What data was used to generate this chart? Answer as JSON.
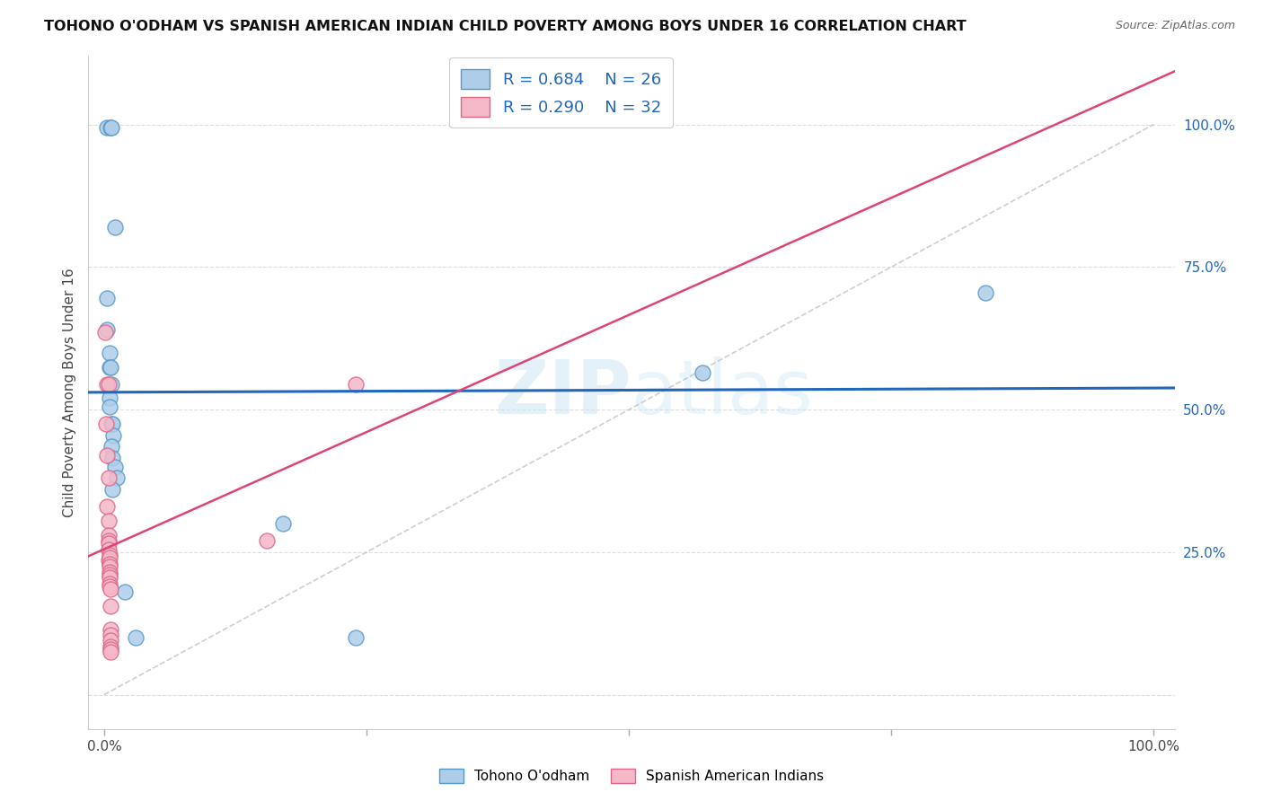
{
  "title": "TOHONO O'ODHAM VS SPANISH AMERICAN INDIAN CHILD POVERTY AMONG BOYS UNDER 16 CORRELATION CHART",
  "source": "Source: ZipAtlas.com",
  "ylabel": "Child Poverty Among Boys Under 16",
  "watermark": "ZIPatlas",
  "blue_R": 0.684,
  "blue_N": 26,
  "pink_R": 0.29,
  "pink_N": 32,
  "blue_color": "#aecde8",
  "pink_color": "#f5b8c8",
  "blue_edge_color": "#5599cc",
  "pink_edge_color": "#dd6688",
  "blue_line_color": "#2266bb",
  "pink_line_color": "#dd4477",
  "grid_color": "#dddddd",
  "background_color": "#ffffff",
  "blue_points": [
    [
      0.003,
      0.995
    ],
    [
      0.006,
      0.995
    ],
    [
      0.007,
      0.995
    ],
    [
      0.01,
      0.82
    ],
    [
      0.003,
      0.695
    ],
    [
      0.003,
      0.64
    ],
    [
      0.005,
      0.6
    ],
    [
      0.005,
      0.575
    ],
    [
      0.006,
      0.575
    ],
    [
      0.007,
      0.545
    ],
    [
      0.005,
      0.52
    ],
    [
      0.005,
      0.505
    ],
    [
      0.007,
      0.475
    ],
    [
      0.008,
      0.475
    ],
    [
      0.009,
      0.455
    ],
    [
      0.007,
      0.435
    ],
    [
      0.008,
      0.415
    ],
    [
      0.01,
      0.4
    ],
    [
      0.012,
      0.38
    ],
    [
      0.008,
      0.36
    ],
    [
      0.02,
      0.18
    ],
    [
      0.03,
      0.1
    ],
    [
      0.17,
      0.3
    ],
    [
      0.24,
      0.1
    ],
    [
      0.57,
      0.565
    ],
    [
      0.84,
      0.705
    ]
  ],
  "pink_points": [
    [
      0.001,
      0.635
    ],
    [
      0.003,
      0.545
    ],
    [
      0.002,
      0.475
    ],
    [
      0.004,
      0.545
    ],
    [
      0.003,
      0.42
    ],
    [
      0.004,
      0.38
    ],
    [
      0.003,
      0.33
    ],
    [
      0.004,
      0.305
    ],
    [
      0.004,
      0.28
    ],
    [
      0.004,
      0.27
    ],
    [
      0.004,
      0.265
    ],
    [
      0.004,
      0.255
    ],
    [
      0.005,
      0.245
    ],
    [
      0.004,
      0.235
    ],
    [
      0.005,
      0.24
    ],
    [
      0.005,
      0.23
    ],
    [
      0.005,
      0.225
    ],
    [
      0.005,
      0.215
    ],
    [
      0.005,
      0.21
    ],
    [
      0.005,
      0.205
    ],
    [
      0.005,
      0.195
    ],
    [
      0.005,
      0.19
    ],
    [
      0.006,
      0.185
    ],
    [
      0.006,
      0.155
    ],
    [
      0.006,
      0.115
    ],
    [
      0.006,
      0.105
    ],
    [
      0.006,
      0.095
    ],
    [
      0.006,
      0.085
    ],
    [
      0.006,
      0.08
    ],
    [
      0.006,
      0.075
    ],
    [
      0.155,
      0.27
    ],
    [
      0.24,
      0.545
    ]
  ],
  "xlim": [
    -0.015,
    1.02
  ],
  "ylim": [
    -0.06,
    1.12
  ],
  "figsize": [
    14.06,
    8.92
  ],
  "dpi": 100
}
